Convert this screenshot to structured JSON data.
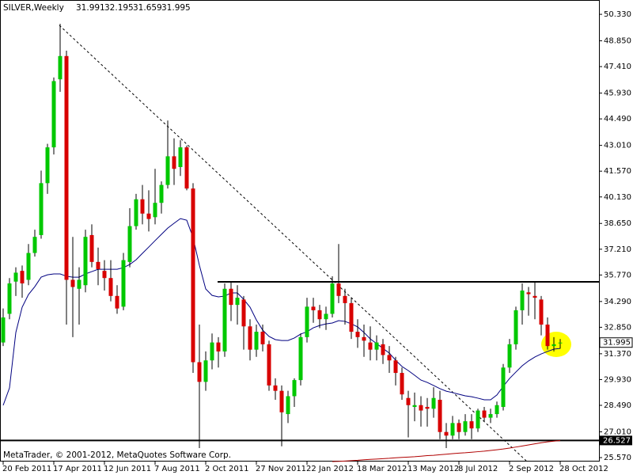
{
  "chart_data": {
    "type": "candlestick",
    "title": "SILVER,Weekly",
    "footer": "MetaTrader, © 2001-2012, MetaQuotes Software Corp.",
    "up_color": "#00c800",
    "down_color": "#d80000",
    "wick_color": "#000000",
    "categories": [
      "20 Feb 2011",
      null,
      null,
      null,
      null,
      null,
      null,
      null,
      "17 Apr 2011",
      null,
      null,
      null,
      null,
      null,
      null,
      null,
      "12 Jun 2011",
      null,
      null,
      null,
      null,
      null,
      null,
      null,
      "7 Aug 2011",
      null,
      null,
      null,
      null,
      null,
      null,
      null,
      "2 Oct 2011",
      null,
      null,
      null,
      null,
      null,
      null,
      null,
      "27 Nov 2011",
      null,
      null,
      null,
      null,
      null,
      null,
      null,
      "22 Jan 2012",
      null,
      null,
      null,
      null,
      null,
      null,
      null,
      "18 Mar 2012",
      null,
      null,
      null,
      null,
      null,
      null,
      null,
      "13 May 2012",
      null,
      null,
      null,
      null,
      null,
      null,
      null,
      "8 Jul 2012",
      null,
      null,
      null,
      null,
      null,
      null,
      null,
      "2 Sep 2012",
      null,
      null,
      null,
      null,
      null,
      null,
      null,
      "28 Oct 2012"
    ],
    "open": [
      32.0,
      33.6,
      35.4,
      36.0,
      35.5,
      37.0,
      38.0,
      40.9,
      42.9,
      46.7,
      48.0,
      35.5,
      35.0,
      35.2,
      38.0,
      36.5,
      36.0,
      35.6,
      34.6,
      34.0,
      36.5,
      38.5,
      40.0,
      39.2,
      39.0,
      39.8,
      40.8,
      42.4,
      41.8,
      42.9,
      40.6,
      30.9,
      29.8,
      31.0,
      32.0,
      31.5,
      35.0,
      34.1,
      34.4,
      32.9,
      31.6,
      32.6,
      31.9,
      29.6,
      29.3,
      28.0,
      29.0,
      29.9,
      32.3,
      34.0,
      33.8,
      33.3,
      33.6,
      35.3,
      34.6,
      34.2,
      32.6,
      32.3,
      32.0,
      31.6,
      31.9,
      31.3,
      31.0,
      30.3,
      28.9,
      28.4,
      28.5,
      28.4,
      28.3,
      28.8,
      27.0,
      26.8,
      27.5,
      27.0,
      27.6,
      27.2,
      28.2,
      27.8,
      28.0,
      28.4,
      30.6,
      31.9,
      33.8,
      34.8,
      34.6,
      34.4,
      33.0,
      31.8,
      31.991
    ],
    "high": [
      33.9,
      35.6,
      36.2,
      36.3,
      37.5,
      38.3,
      41.6,
      43.1,
      46.8,
      49.8,
      48.3,
      37.9,
      36.2,
      38.3,
      38.6,
      37.3,
      36.6,
      36.6,
      35.2,
      37.0,
      39.5,
      40.3,
      40.8,
      40.5,
      41.7,
      41.0,
      44.4,
      43.4,
      43.3,
      43.0,
      40.9,
      33.0,
      31.5,
      32.5,
      32.3,
      35.3,
      35.4,
      35.2,
      34.6,
      33.3,
      33.0,
      33.0,
      32.1,
      30.0,
      29.6,
      29.3,
      30.0,
      32.5,
      34.5,
      34.5,
      34.1,
      34.0,
      35.7,
      37.5,
      35.0,
      34.5,
      33.3,
      33.0,
      32.9,
      32.4,
      32.2,
      31.8,
      31.2,
      30.6,
      29.3,
      29.2,
      29.0,
      28.9,
      29.5,
      29.3,
      27.5,
      27.9,
      27.7,
      28.0,
      28.0,
      28.3,
      28.4,
      28.3,
      28.7,
      30.8,
      32.2,
      34.0,
      35.3,
      35.1,
      35.4,
      34.6,
      33.4,
      32.3,
      32.195
    ],
    "low": [
      31.8,
      33.3,
      34.6,
      34.5,
      35.2,
      36.8,
      37.8,
      40.3,
      42.5,
      46.0,
      33.0,
      32.3,
      33.0,
      34.8,
      36.2,
      35.2,
      34.9,
      34.3,
      33.6,
      33.8,
      36.2,
      38.3,
      38.6,
      38.2,
      38.6,
      39.2,
      40.6,
      40.8,
      41.3,
      40.5,
      30.3,
      26.1,
      29.3,
      30.5,
      30.6,
      31.2,
      33.2,
      33.0,
      31.6,
      31.0,
      31.2,
      31.5,
      29.3,
      28.8,
      26.2,
      27.5,
      28.4,
      29.6,
      32.0,
      33.1,
      32.8,
      32.7,
      33.4,
      34.2,
      33.0,
      32.2,
      31.7,
      31.2,
      31.0,
      31.0,
      30.8,
      30.3,
      29.6,
      28.8,
      26.7,
      27.6,
      27.3,
      27.3,
      27.8,
      26.6,
      26.1,
      26.6,
      26.6,
      26.8,
      26.6,
      27.0,
      27.6,
      27.5,
      27.8,
      28.2,
      30.3,
      31.6,
      33.0,
      33.5,
      33.3,
      32.4,
      31.6,
      31.5,
      31.659
    ],
    "close": [
      33.4,
      35.3,
      35.9,
      35.3,
      37.0,
      37.9,
      40.9,
      42.9,
      46.6,
      48.0,
      35.5,
      35.1,
      35.5,
      37.9,
      36.5,
      36.1,
      35.6,
      34.6,
      33.9,
      36.6,
      38.5,
      40.0,
      39.2,
      38.9,
      39.8,
      40.8,
      42.4,
      41.7,
      42.9,
      40.6,
      30.9,
      29.8,
      31.0,
      32.0,
      31.5,
      35.0,
      34.1,
      34.5,
      32.9,
      31.6,
      32.6,
      31.9,
      29.6,
      29.3,
      28.1,
      29.0,
      29.9,
      32.3,
      34.0,
      33.8,
      33.3,
      33.6,
      35.3,
      34.6,
      34.2,
      32.6,
      32.3,
      32.1,
      31.6,
      32.0,
      31.3,
      31.0,
      30.3,
      29.1,
      28.5,
      28.5,
      28.2,
      28.3,
      28.9,
      27.0,
      26.8,
      27.5,
      27.0,
      27.6,
      27.2,
      28.2,
      27.8,
      28.0,
      28.5,
      30.6,
      31.9,
      33.8,
      34.9,
      34.7,
      34.5,
      33.0,
      31.8,
      31.9,
      31.995
    ],
    "moving_averages": [
      {
        "color": "#000080",
        "values": [
          28.49,
          29.46,
          32.56,
          33.97,
          34.68,
          35.12,
          35.65,
          35.78,
          35.83,
          35.83,
          35.7,
          35.65,
          35.65,
          35.83,
          35.96,
          36.09,
          36.09,
          36.09,
          36.09,
          36.18,
          36.36,
          36.62,
          36.98,
          37.33,
          37.69,
          38.04,
          38.39,
          38.66,
          38.92,
          38.83,
          37.86,
          36.31,
          34.99,
          34.63,
          34.55,
          34.59,
          34.77,
          34.77,
          34.41,
          33.97,
          33.26,
          32.69,
          32.34,
          32.16,
          32.11,
          32.11,
          32.25,
          32.47,
          32.6,
          32.82,
          32.95,
          33.04,
          33.09,
          33.22,
          33.18,
          33.04,
          32.87,
          32.56,
          32.2,
          31.94,
          31.67,
          31.41,
          31.01,
          30.66,
          30.43,
          30.17,
          29.9,
          29.77,
          29.6,
          29.42,
          29.28,
          29.2,
          29.11,
          29.02,
          28.97,
          28.89,
          28.8,
          28.8,
          29.07,
          29.55,
          29.99,
          30.35,
          30.7,
          30.97,
          31.19,
          31.36,
          31.5,
          31.63,
          31.67
        ]
      },
      {
        "color": "#b00000",
        "values": [
          null,
          null,
          null,
          null,
          null,
          null,
          null,
          null,
          null,
          null,
          null,
          null,
          null,
          null,
          null,
          null,
          null,
          null,
          null,
          null,
          null,
          null,
          null,
          null,
          null,
          null,
          null,
          null,
          null,
          null,
          null,
          null,
          null,
          null,
          null,
          null,
          null,
          null,
          null,
          null,
          null,
          null,
          null,
          null,
          null,
          null,
          null,
          null,
          null,
          null,
          null,
          null,
          25.35,
          25.36,
          25.38,
          25.4,
          25.42,
          25.45,
          25.47,
          25.49,
          25.51,
          25.53,
          25.56,
          25.58,
          25.6,
          25.62,
          25.65,
          25.68,
          25.7,
          25.73,
          25.76,
          25.79,
          25.82,
          25.84,
          25.87,
          25.9,
          25.93,
          25.97,
          26.01,
          26.05,
          26.1,
          26.16,
          26.22,
          26.28,
          26.34,
          26.4,
          26.45,
          26.49,
          26.52
        ]
      }
    ],
    "hlines": [
      {
        "value": 35.39,
        "color": "#000000"
      },
      {
        "value": 26.527,
        "color": "#000000"
      }
    ],
    "ylim": [
      25.35,
      51.13
    ],
    "yticks": [
      {
        "value": 50.33,
        "label": "50.330"
      },
      {
        "value": 48.85,
        "label": "48.850"
      },
      {
        "value": 47.41,
        "label": "47.410"
      },
      {
        "value": 45.93,
        "label": "45.930"
      },
      {
        "value": 44.49,
        "label": "44.490"
      },
      {
        "value": 43.01,
        "label": "43.010"
      },
      {
        "value": 41.57,
        "label": "41.570"
      },
      {
        "value": 40.13,
        "label": "40.130"
      },
      {
        "value": 38.65,
        "label": "38.650"
      },
      {
        "value": 37.21,
        "label": "37.210"
      },
      {
        "value": 35.77,
        "label": "35.770"
      },
      {
        "value": 34.29,
        "label": "34.290"
      },
      {
        "value": 32.85,
        "label": "32.850"
      },
      {
        "value": 31.37,
        "label": "31.370"
      },
      {
        "value": 29.93,
        "label": "29.930"
      },
      {
        "value": 28.49,
        "label": "28.490"
      },
      {
        "value": 27.01,
        "label": "27.010"
      },
      {
        "value": 25.57,
        "label": "25.570"
      }
    ]
  }
}
